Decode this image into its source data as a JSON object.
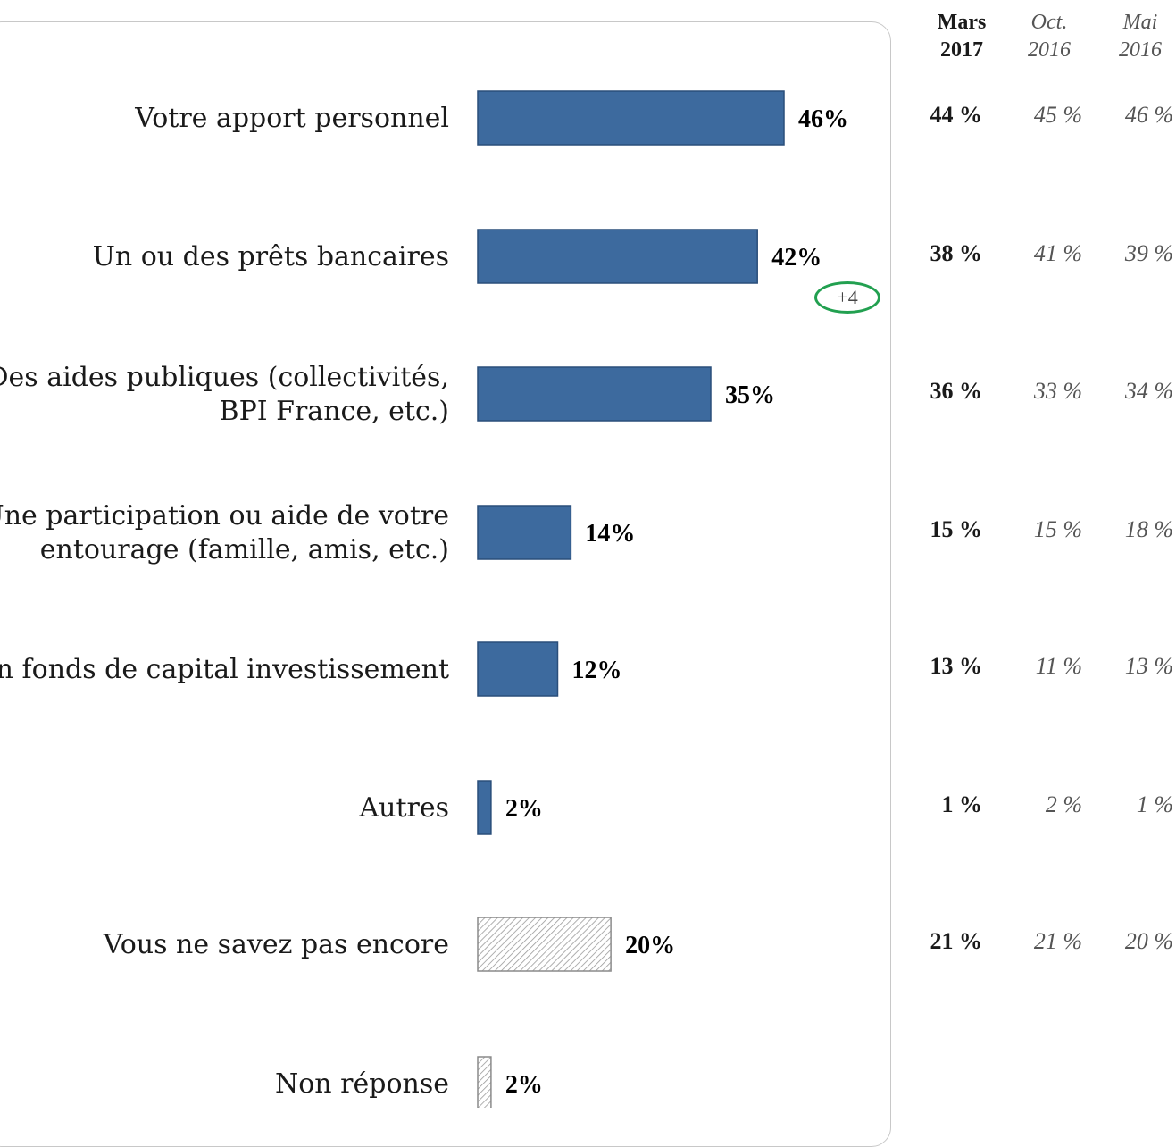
{
  "chart_data": {
    "type": "bar",
    "orientation": "horizontal",
    "categories": [
      "Votre apport personnel",
      "Un ou des prêts bancaires",
      "Des aides publiques (collectivités, BPI France, etc.)",
      "Une participation ou aide de votre entourage (famille, amis, etc.)",
      "Un fonds de capital investissement",
      "Autres",
      "Vous ne savez pas encore",
      "Non réponse"
    ],
    "category_lines": [
      [
        "Votre apport personnel"
      ],
      [
        "Un ou des prêts bancaires"
      ],
      [
        "Des aides publiques (collectivités,",
        "BPI France, etc.)"
      ],
      [
        "Une participation ou aide de votre",
        "entourage (famille, amis, etc.)"
      ],
      [
        "Un fonds de capital investissement"
      ],
      [
        "Autres"
      ],
      [
        "Vous ne savez pas encore"
      ],
      [
        "Non réponse"
      ]
    ],
    "values": [
      46,
      42,
      35,
      14,
      12,
      2,
      20,
      2
    ],
    "value_labels": [
      "46%",
      "42%",
      "35%",
      "14%",
      "12%",
      "2%",
      "20%",
      "2%"
    ],
    "bar_styles": [
      "solid",
      "solid",
      "solid",
      "solid",
      "solid",
      "solid",
      "hatched",
      "hatched"
    ],
    "xlim": [
      0,
      46
    ],
    "grid": false,
    "colors": {
      "bar": "#3d6a9e",
      "bar_border": "#2a4e7a",
      "hatch": "#9a9a9a",
      "badge": "#22a050"
    },
    "annotations": [
      {
        "category": "Un ou des prêts bancaires",
        "text": "+4"
      }
    ],
    "history_columns": [
      {
        "label_line1": "Mars",
        "label_line2": "2017",
        "style": "bold"
      },
      {
        "label_line1": "Oct.",
        "label_line2": "2016",
        "style": "italic"
      },
      {
        "label_line1": "Mai",
        "label_line2": "2016",
        "style": "italic"
      }
    ],
    "history_values": [
      [
        "44 %",
        "45 %",
        "46 %"
      ],
      [
        "38 %",
        "41 %",
        "39 %"
      ],
      [
        "36 %",
        "33 %",
        "34 %"
      ],
      [
        "15 %",
        "15 %",
        "18 %"
      ],
      [
        "13 %",
        "11 %",
        "13 %"
      ],
      [
        "1 %",
        "2 %",
        "1 %"
      ],
      [
        "21 %",
        "21 %",
        "20 %"
      ],
      [
        "",
        "",
        ""
      ]
    ]
  }
}
